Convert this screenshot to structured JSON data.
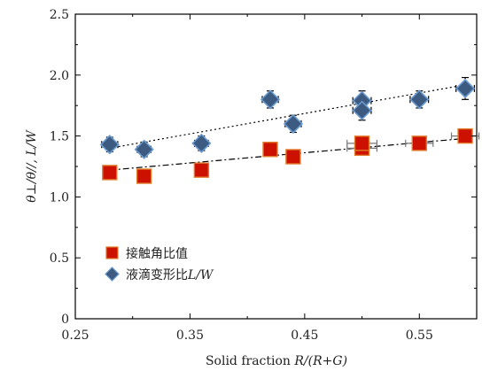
{
  "chart_data": {
    "type": "scatter",
    "xlabel": {
      "prefix": "Solid fraction ",
      "math": "R/(R+G)"
    },
    "ylabel": {
      "math": "θ⊥/θ//, L/W"
    },
    "xlim": [
      0.25,
      0.6
    ],
    "ylim": [
      0,
      2.5
    ],
    "xticks": [
      0.25,
      0.35,
      0.45,
      0.55
    ],
    "xtick_labels": [
      "0.25",
      "0.35",
      "0.45",
      "0.55"
    ],
    "yticks": [
      0,
      0.5,
      1.0,
      1.5,
      2.0,
      2.5
    ],
    "ytick_labels": [
      "0",
      "0.5",
      "1.0",
      "1.5",
      "2.0",
      "2.5"
    ],
    "grid": false,
    "legend_position": "bottom-left",
    "series": [
      {
        "name": "接触角比值",
        "marker": "square",
        "color": "#cc1100",
        "edge_color": "#e07a2a",
        "x": [
          0.28,
          0.31,
          0.36,
          0.42,
          0.44,
          0.5,
          0.5,
          0.55,
          0.59
        ],
        "y": [
          1.2,
          1.17,
          1.22,
          1.39,
          1.33,
          1.4,
          1.44,
          1.44,
          1.5
        ],
        "xerr": [
          0,
          0,
          0,
          0.006,
          0,
          0.013,
          0.013,
          0.012,
          0.012
        ],
        "yerr": [
          0.03,
          0.03,
          0.03,
          0.04,
          0.04,
          0.04,
          0.04,
          0.04,
          0.04
        ],
        "fit": {
          "style": "dash-dot",
          "x": [
            0.28,
            0.59
          ],
          "y": [
            1.22,
            1.48
          ]
        }
      },
      {
        "name": "液滴变形比",
        "name_suffix_math": "L/W",
        "marker": "diamond",
        "color": "#3d5a80",
        "edge_color": "#6a9bd1",
        "x": [
          0.28,
          0.31,
          0.36,
          0.42,
          0.44,
          0.5,
          0.5,
          0.55,
          0.59
        ],
        "y": [
          1.43,
          1.39,
          1.44,
          1.8,
          1.6,
          1.79,
          1.71,
          1.8,
          1.89
        ],
        "xerr": [
          0.007,
          0.006,
          0.006,
          0.007,
          0.007,
          0.008,
          0.008,
          0.008,
          0.008
        ],
        "yerr": [
          0.06,
          0.06,
          0.06,
          0.07,
          0.07,
          0.08,
          0.08,
          0.07,
          0.09
        ],
        "fit": {
          "style": "dotted",
          "x": [
            0.28,
            0.59
          ],
          "y": [
            1.4,
            1.92
          ]
        }
      }
    ]
  }
}
